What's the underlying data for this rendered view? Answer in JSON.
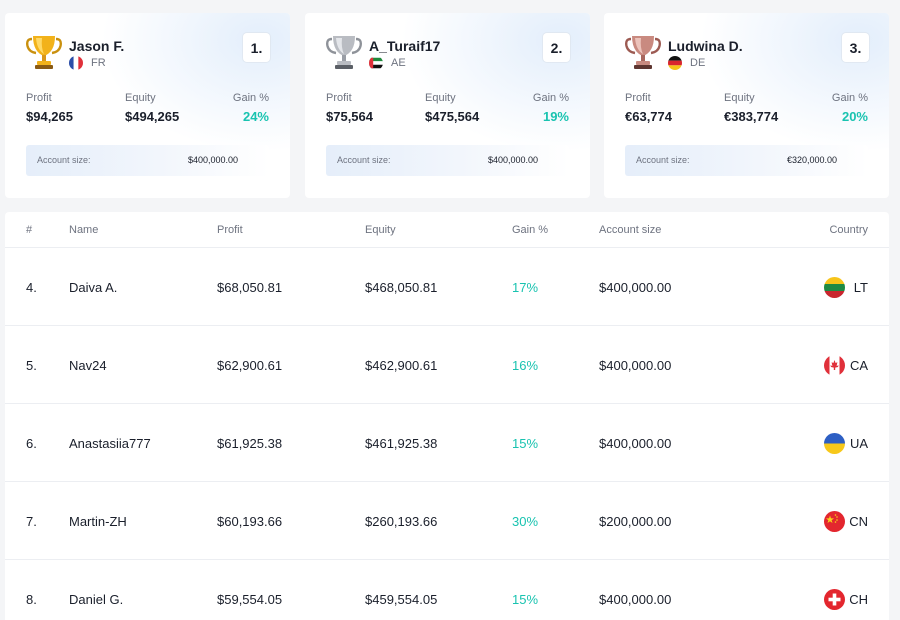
{
  "podium": [
    {
      "name": "Jason F.",
      "country": "FR",
      "rank": "1.",
      "trophy": "gold-trophy-icon",
      "flag": "france-flag-icon",
      "profit_label": "Profit",
      "profit": "$94,265",
      "equity_label": "Equity",
      "equity": "$494,265",
      "gain_label": "Gain %",
      "gain": "24%",
      "account_label": "Account size:",
      "account_size": "$400,000.00"
    },
    {
      "name": "A_Turaif17",
      "country": "AE",
      "rank": "2.",
      "trophy": "silver-trophy-icon",
      "flag": "uae-flag-icon",
      "profit_label": "Profit",
      "profit": "$75,564",
      "equity_label": "Equity",
      "equity": "$475,564",
      "gain_label": "Gain %",
      "gain": "19%",
      "account_label": "Account size:",
      "account_size": "$400,000.00"
    },
    {
      "name": "Ludwina D.",
      "country": "DE",
      "rank": "3.",
      "trophy": "bronze-trophy-icon",
      "flag": "germany-flag-icon",
      "profit_label": "Profit",
      "profit": "€63,774",
      "equity_label": "Equity",
      "equity": "€383,774",
      "gain_label": "Gain %",
      "gain": "20%",
      "account_label": "Account size:",
      "account_size": "€320,000.00"
    }
  ],
  "table": {
    "headers": {
      "rank": "#",
      "name": "Name",
      "profit": "Profit",
      "equity": "Equity",
      "gain": "Gain %",
      "account_size": "Account size",
      "country": "Country"
    },
    "rows": [
      {
        "rank": "4.",
        "name": "Daiva A.",
        "profit": "$68,050.81",
        "equity": "$468,050.81",
        "gain": "17%",
        "account_size": "$400,000.00",
        "country": "LT",
        "flag": "lithuania-flag-icon"
      },
      {
        "rank": "5.",
        "name": "Nav24",
        "profit": "$62,900.61",
        "equity": "$462,900.61",
        "gain": "16%",
        "account_size": "$400,000.00",
        "country": "CA",
        "flag": "canada-flag-icon"
      },
      {
        "rank": "6.",
        "name": "Anastasiia777",
        "profit": "$61,925.38",
        "equity": "$461,925.38",
        "gain": "15%",
        "account_size": "$400,000.00",
        "country": "UA",
        "flag": "ukraine-flag-icon"
      },
      {
        "rank": "7.",
        "name": "Martin-ZH",
        "profit": "$60,193.66",
        "equity": "$260,193.66",
        "gain": "30%",
        "account_size": "$200,000.00",
        "country": "CN",
        "flag": "china-flag-icon"
      },
      {
        "rank": "8.",
        "name": "Daniel G.",
        "profit": "$59,554.05",
        "equity": "$459,554.05",
        "gain": "15%",
        "account_size": "$400,000.00",
        "country": "CH",
        "flag": "switzerland-flag-icon"
      }
    ]
  },
  "colors": {
    "accent_gain": "#19c3b0",
    "background": "#f4f5f7",
    "card": "#ffffff"
  }
}
